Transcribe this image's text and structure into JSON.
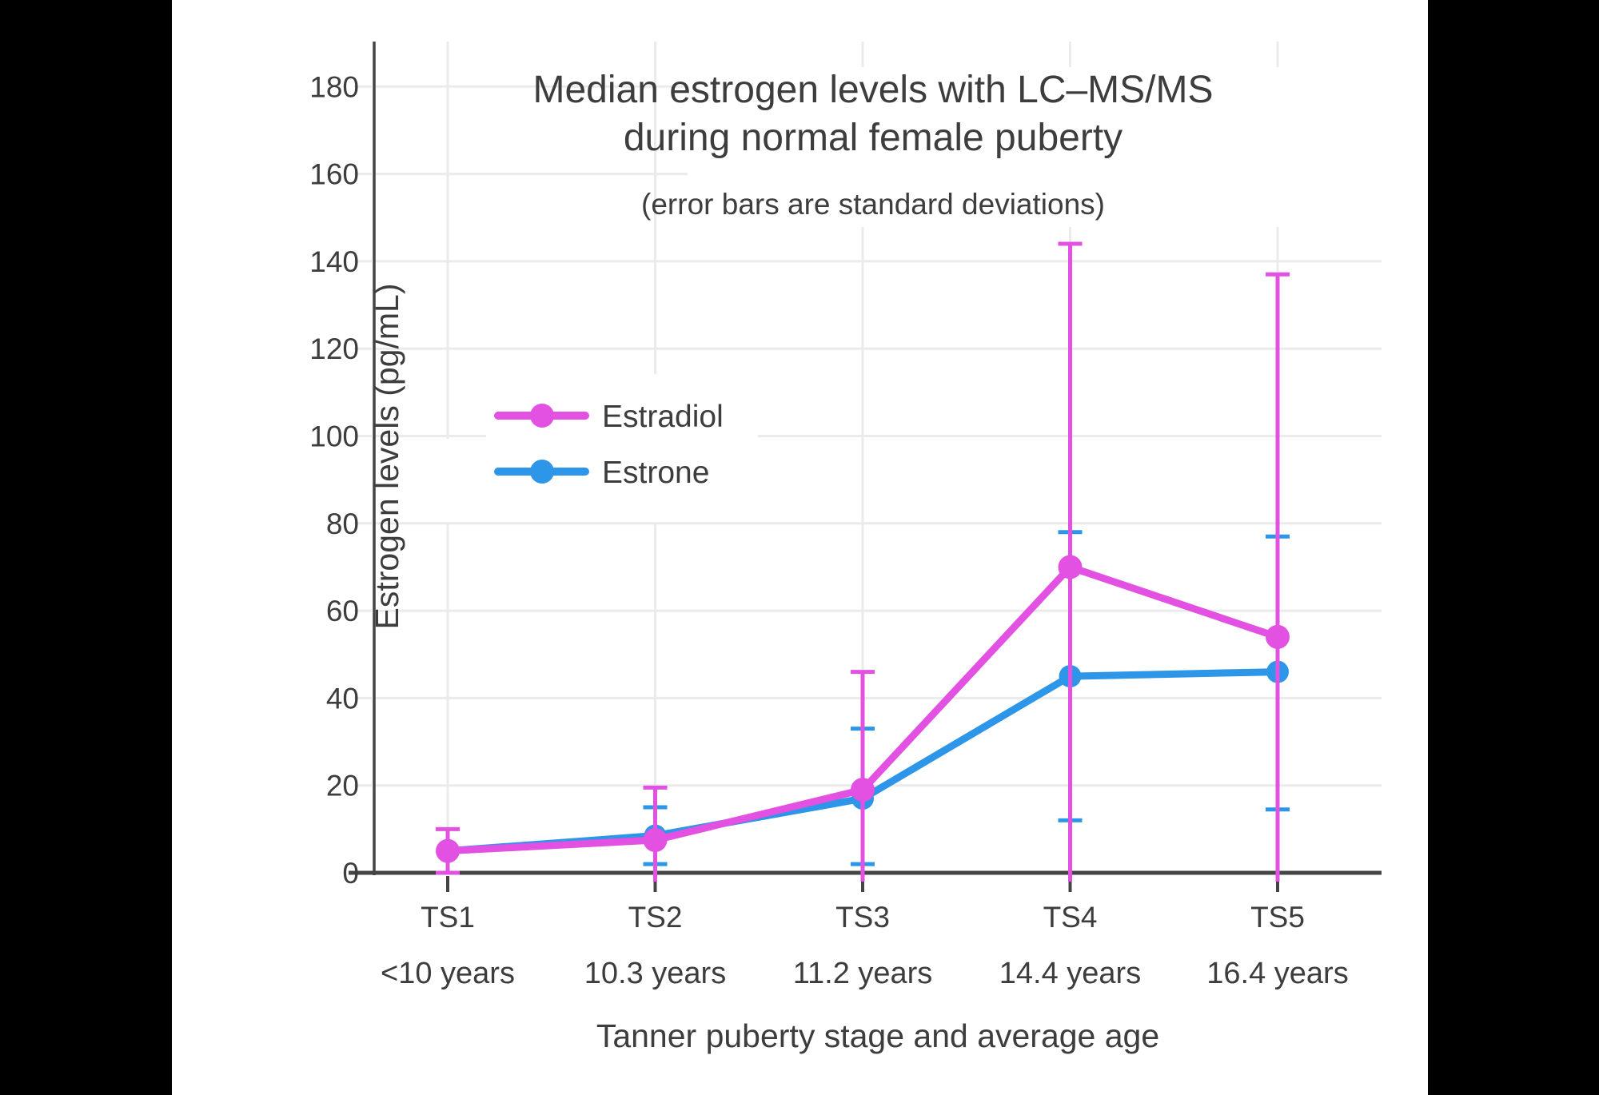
{
  "window": {
    "background": "#000000",
    "canvas_background": "#ffffff"
  },
  "style": {
    "text_color": "#3d3d3d",
    "axis_color": "#444444",
    "grid_color": "#ebebeb",
    "estradiol_color": "#E251E2",
    "estrone_color": "#2E96E8"
  },
  "chart_data": {
    "type": "line",
    "title_lines": [
      "Median estrogen levels with LC–MS/MS",
      "during normal female puberty"
    ],
    "subtitle": "(error bars are standard deviations)",
    "xlabel": "Tanner puberty stage and average age",
    "ylabel": "Estrogen levels (pg/mL)",
    "categories": [
      "TS1",
      "TS2",
      "TS3",
      "TS4",
      "TS5"
    ],
    "category_ages": [
      "<10 years",
      "10.3 years",
      "11.2 years",
      "14.4 years",
      "16.4 years"
    ],
    "y_ticks": [
      0,
      20,
      40,
      60,
      80,
      100,
      120,
      140,
      160,
      180
    ],
    "ylim": [
      -2,
      190.5
    ],
    "grid": true,
    "legend": {
      "position": "inside-left-middle",
      "entries": [
        "Estradiol",
        "Estrone"
      ]
    },
    "error_bar_note": "Error bars are standard deviations; bars reaching below 0 are clipped at the x-axis and drawn without a bottom cap.",
    "series": [
      {
        "name": "Estradiol",
        "color": "#E251E2",
        "values": [
          5,
          7.5,
          19,
          70,
          54
        ],
        "err_top": [
          10,
          19.5,
          46,
          144,
          137
        ],
        "err_bottom": [
          0,
          null,
          null,
          null,
          null
        ]
      },
      {
        "name": "Estrone",
        "color": "#2E96E8",
        "values": [
          5,
          8.5,
          17,
          45,
          46
        ],
        "err_top": [
          null,
          15,
          33,
          78,
          77
        ],
        "err_bottom": [
          null,
          2,
          2,
          12,
          14.5
        ]
      }
    ]
  }
}
